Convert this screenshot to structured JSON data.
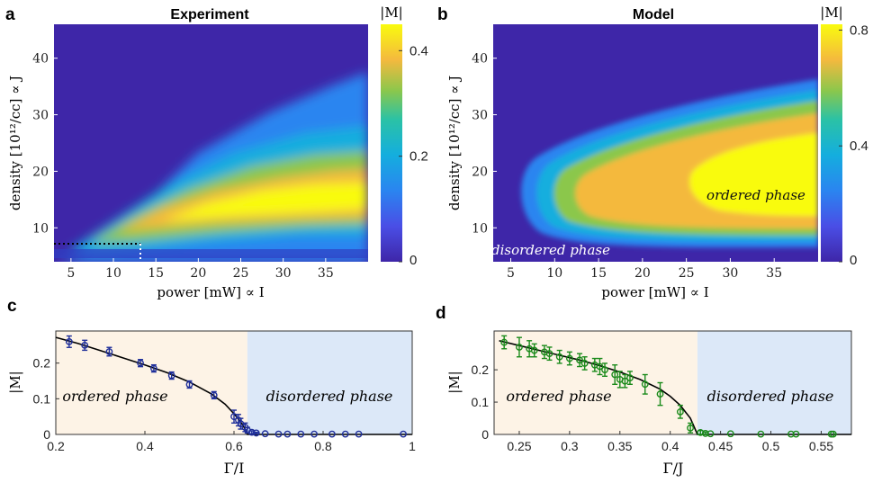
{
  "chart_data": [
    {
      "type": "heatmap",
      "panel_label": "a",
      "title": "Experiment",
      "xlabel": "power [mW] ∝ I",
      "ylabel": "density [10¹²/cc] ∝ J",
      "xlim": [
        3,
        40
      ],
      "ylim": [
        4,
        46
      ],
      "xticks": [
        5,
        10,
        15,
        20,
        25,
        30,
        35
      ],
      "yticks": [
        10,
        20,
        30,
        40
      ],
      "colorbar": {
        "label": "|M|",
        "range": [
          0,
          0.45
        ],
        "ticks": [
          0,
          0.2,
          0.4
        ],
        "tick_labels": [
          "0",
          "0.2",
          "0.4"
        ]
      },
      "peak_value": 0.43,
      "ordered_region": "ridge centred near density 16, widening from the lower-left corner to the upper right",
      "dotted_guides": {
        "horizontal_at_density": 7,
        "vertical_at_power": 13
      }
    },
    {
      "type": "heatmap",
      "panel_label": "b",
      "title": "Model",
      "xlabel": "power [mW] ∝ I",
      "ylabel": "density [10¹²/cc] ∝ J",
      "xlim": [
        3,
        40
      ],
      "ylim": [
        4,
        46
      ],
      "xticks": [
        5,
        10,
        15,
        20,
        25,
        30,
        35
      ],
      "yticks": [
        10,
        20,
        30,
        40
      ],
      "colorbar": {
        "label": "|M|",
        "range": [
          0,
          0.82
        ],
        "ticks": [
          0,
          0.4,
          0.8
        ],
        "tick_labels": [
          "0",
          "0.4",
          "0.8"
        ]
      },
      "peak_value": 0.8,
      "annotations": [
        "ordered phase",
        "disordered phase"
      ]
    },
    {
      "type": "scatter",
      "panel_label": "c",
      "xlabel": "Γ/I",
      "ylabel": "|M|",
      "xlim": [
        0.2,
        1.0
      ],
      "ylim": [
        0,
        0.29
      ],
      "xticks": [
        0.2,
        0.4,
        0.6,
        0.8,
        1.0
      ],
      "xtick_labels": [
        "0.2",
        "0.4",
        "0.6",
        "0.8",
        "1"
      ],
      "yticks": [
        0,
        0.1,
        0.2
      ],
      "ytick_labels": [
        "0",
        "0.1",
        "0.2"
      ],
      "critical_point": 0.63,
      "regions": [
        "ordered phase",
        "disordered phase"
      ],
      "series": [
        {
          "name": "data",
          "x": [
            0.23,
            0.265,
            0.32,
            0.39,
            0.42,
            0.46,
            0.5,
            0.555,
            0.6,
            0.61,
            0.615,
            0.625,
            0.63,
            0.64,
            0.65,
            0.67,
            0.7,
            0.72,
            0.75,
            0.78,
            0.82,
            0.85,
            0.88,
            0.98
          ],
          "y": [
            0.26,
            0.25,
            0.232,
            0.2,
            0.185,
            0.165,
            0.14,
            0.11,
            0.05,
            0.04,
            0.03,
            0.02,
            0.012,
            0.006,
            0.004,
            0.002,
            0.001,
            0.001,
            0.001,
            0.001,
            0.001,
            0.001,
            0.001,
            0.001
          ],
          "err": [
            0.016,
            0.014,
            0.012,
            0.01,
            0.01,
            0.01,
            0.01,
            0.01,
            0.018,
            0.016,
            0.015,
            0.012,
            0.008,
            0.004,
            0.002,
            0,
            0,
            0,
            0,
            0,
            0,
            0,
            0,
            0
          ]
        },
        {
          "name": "fit",
          "x": [
            0.2,
            0.25,
            0.3,
            0.35,
            0.4,
            0.45,
            0.5,
            0.55,
            0.58,
            0.6,
            0.615,
            0.625,
            0.63,
            1.0
          ],
          "y": [
            0.272,
            0.255,
            0.235,
            0.215,
            0.195,
            0.173,
            0.147,
            0.113,
            0.085,
            0.058,
            0.035,
            0.015,
            0.0,
            0.0
          ]
        }
      ]
    },
    {
      "type": "scatter",
      "panel_label": "d",
      "xlabel": "Γ/J",
      "ylabel": "|M|",
      "xlim": [
        0.225,
        0.58
      ],
      "ylim": [
        0,
        0.32
      ],
      "xticks": [
        0.25,
        0.3,
        0.35,
        0.4,
        0.45,
        0.5,
        0.55
      ],
      "xtick_labels": [
        "0.25",
        "0.3",
        "0.35",
        "0.4",
        "0.45",
        "0.5",
        "0.55"
      ],
      "yticks": [
        0,
        0.1,
        0.2
      ],
      "ytick_labels": [
        "0",
        "0.1",
        "0.2"
      ],
      "critical_point": 0.427,
      "regions": [
        "ordered phase",
        "disordered phase"
      ],
      "series": [
        {
          "name": "data",
          "x": [
            0.235,
            0.25,
            0.26,
            0.265,
            0.275,
            0.28,
            0.29,
            0.3,
            0.31,
            0.315,
            0.325,
            0.33,
            0.335,
            0.345,
            0.35,
            0.355,
            0.36,
            0.375,
            0.39,
            0.41,
            0.42,
            0.43,
            0.435,
            0.44,
            0.46,
            0.49,
            0.52,
            0.525,
            0.56,
            0.562
          ],
          "y": [
            0.285,
            0.27,
            0.265,
            0.26,
            0.255,
            0.25,
            0.24,
            0.235,
            0.23,
            0.22,
            0.215,
            0.21,
            0.2,
            0.185,
            0.17,
            0.165,
            0.175,
            0.155,
            0.125,
            0.07,
            0.02,
            0.006,
            0.003,
            0.002,
            0.002,
            0.001,
            0.001,
            0.001,
            0.001,
            0.001
          ],
          "err": [
            0.02,
            0.03,
            0.025,
            0.02,
            0.02,
            0.02,
            0.02,
            0.02,
            0.02,
            0.02,
            0.02,
            0.025,
            0.02,
            0.03,
            0.025,
            0.02,
            0.02,
            0.03,
            0.035,
            0.02,
            0.015,
            0.006,
            0.004,
            0,
            0,
            0,
            0,
            0,
            0,
            0
          ]
        },
        {
          "name": "fit",
          "x": [
            0.23,
            0.25,
            0.27,
            0.29,
            0.31,
            0.33,
            0.35,
            0.37,
            0.39,
            0.4,
            0.41,
            0.42,
            0.427,
            0.58
          ],
          "y": [
            0.29,
            0.275,
            0.26,
            0.245,
            0.23,
            0.213,
            0.193,
            0.17,
            0.14,
            0.118,
            0.09,
            0.05,
            0.0,
            0.0
          ]
        }
      ]
    }
  ],
  "colors": {
    "scatter_c": "#1f2f9a",
    "scatter_d": "#1a8a1a",
    "fit_line": "#000000",
    "ordered_region": "#fdf3e6",
    "disordered_region": "#dce8f8"
  }
}
